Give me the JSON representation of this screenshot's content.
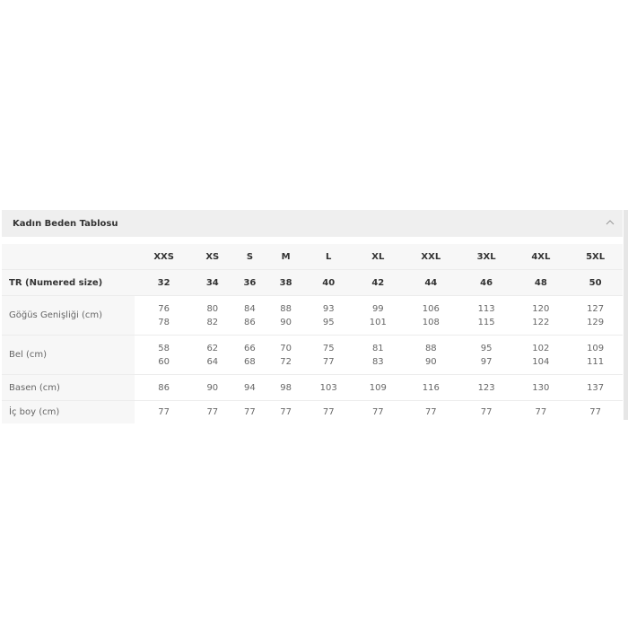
{
  "panel": {
    "title": "Kadın Beden Tablosu",
    "collapse_icon": "chevron-up-icon"
  },
  "table": {
    "sizes": [
      "XXS",
      "XS",
      "S",
      "M",
      "L",
      "XL",
      "XXL",
      "3XL",
      "4XL",
      "5XL"
    ],
    "rows": [
      {
        "label": "TR (Numered size)",
        "values": [
          "32",
          "34",
          "36",
          "38",
          "40",
          "42",
          "44",
          "46",
          "48",
          "50"
        ]
      },
      {
        "label": "Göğüs Genişliği (cm)",
        "values": [
          [
            "76",
            "78"
          ],
          [
            "80",
            "82"
          ],
          [
            "84",
            "86"
          ],
          [
            "88",
            "90"
          ],
          [
            "93",
            "95"
          ],
          [
            "99",
            "101"
          ],
          [
            "106",
            "108"
          ],
          [
            "113",
            "115"
          ],
          [
            "120",
            "122"
          ],
          [
            "127",
            "129"
          ]
        ]
      },
      {
        "label": "Bel (cm)",
        "values": [
          [
            "58",
            "60"
          ],
          [
            "62",
            "64"
          ],
          [
            "66",
            "68"
          ],
          [
            "70",
            "72"
          ],
          [
            "75",
            "77"
          ],
          [
            "81",
            "83"
          ],
          [
            "88",
            "90"
          ],
          [
            "95",
            "97"
          ],
          [
            "102",
            "104"
          ],
          [
            "109",
            "111"
          ]
        ]
      },
      {
        "label": "Basen (cm)",
        "values": [
          "86",
          "90",
          "94",
          "98",
          "103",
          "109",
          "116",
          "123",
          "130",
          "137"
        ]
      },
      {
        "label": "İç boy (cm)",
        "values": [
          "77",
          "77",
          "77",
          "77",
          "77",
          "77",
          "77",
          "77",
          "77",
          "77"
        ]
      }
    ]
  }
}
